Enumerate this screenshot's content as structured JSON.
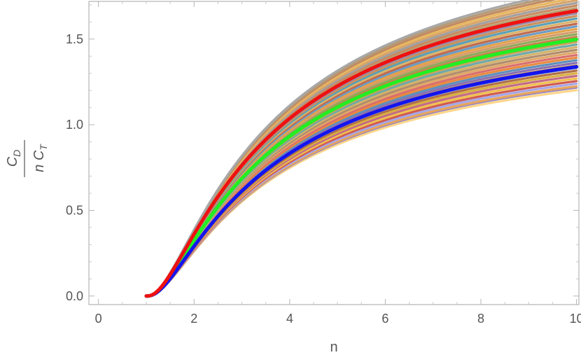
{
  "chart_data": {
    "type": "line",
    "title": "",
    "xlabel": "n",
    "ylabel": {
      "numerator": "C",
      "numerator_sub": "D",
      "denominator": "n C",
      "denominator_sub": "T"
    },
    "xlim": [
      -0.2,
      10.05
    ],
    "ylim": [
      -0.05,
      1.72
    ],
    "x_ticks": [
      0,
      2,
      4,
      6,
      8,
      10
    ],
    "y_ticks": [
      0.0,
      0.5,
      1.0,
      1.5
    ],
    "x_tick_labels": [
      "0",
      "2",
      "4",
      "6",
      "8",
      "10"
    ],
    "y_tick_labels": [
      "0.0",
      "0.5",
      "1.0",
      "1.5"
    ],
    "grid": false,
    "frame": true,
    "curve_form": "y = A * (1 - 1/n)^p",
    "x_range": [
      1,
      10
    ],
    "series": [
      {
        "A": 1.58,
        "p": 2.6,
        "color": "#fdd78a",
        "highlight": false
      },
      {
        "A": 1.6,
        "p": 2.6,
        "color": "#9b88c4",
        "highlight": false
      },
      {
        "A": 1.61,
        "p": 2.6,
        "color": "#e6a45a",
        "highlight": false
      },
      {
        "A": 1.63,
        "p": 2.6,
        "color": "#a6a6e6",
        "highlight": false
      },
      {
        "A": 1.65,
        "p": 2.6,
        "color": "#d05a4f",
        "highlight": false
      },
      {
        "A": 1.67,
        "p": 2.6,
        "color": "#f0c050",
        "highlight": false
      },
      {
        "A": 1.69,
        "p": 2.6,
        "color": "#c26a88",
        "highlight": false
      },
      {
        "A": 1.71,
        "p": 2.6,
        "color": "#d9b040",
        "highlight": false
      },
      {
        "A": 1.73,
        "p": 2.6,
        "color": "#b06e4a",
        "highlight": false
      },
      {
        "A": 1.75,
        "p": 2.6,
        "color": "#7f99c9",
        "highlight": false
      },
      {
        "A": 1.77,
        "p": 2.6,
        "color": "#c9964a",
        "highlight": false
      },
      {
        "A": 1.79,
        "p": 2.6,
        "color": "#8c6fb0",
        "highlight": false
      },
      {
        "A": 1.81,
        "p": 2.6,
        "color": "#5e8fbc",
        "highlight": false
      },
      {
        "A": 1.83,
        "p": 2.6,
        "color": "#e88a3e",
        "highlight": false
      },
      {
        "A": 1.85,
        "p": 2.6,
        "color": "#d96e6e",
        "highlight": false
      },
      {
        "A": 1.87,
        "p": 2.6,
        "color": "#e0a868",
        "highlight": false
      },
      {
        "A": 1.89,
        "p": 2.6,
        "color": "#b08c6c",
        "highlight": false
      },
      {
        "A": 1.91,
        "p": 2.6,
        "color": "#d4b26b",
        "highlight": false
      },
      {
        "A": 1.93,
        "p": 2.6,
        "color": "#6ea8a8",
        "highlight": false
      },
      {
        "A": 1.95,
        "p": 2.6,
        "color": "#c9a15a",
        "highlight": false
      },
      {
        "A": 1.97,
        "p": 2.6,
        "color": "#e8b14a",
        "highlight": false
      },
      {
        "A": 1.99,
        "p": 2.6,
        "color": "#c7804a",
        "highlight": false
      },
      {
        "A": 2.01,
        "p": 2.6,
        "color": "#8fa85a",
        "highlight": false
      },
      {
        "A": 2.03,
        "p": 2.6,
        "color": "#d49c6c",
        "highlight": false
      },
      {
        "A": 2.05,
        "p": 2.6,
        "color": "#e4a24a",
        "highlight": false
      },
      {
        "A": 2.07,
        "p": 2.6,
        "color": "#6d9cc4",
        "highlight": false
      },
      {
        "A": 2.09,
        "p": 2.6,
        "color": "#c06a4e",
        "highlight": false
      },
      {
        "A": 2.11,
        "p": 2.6,
        "color": "#ddb36a",
        "highlight": false
      },
      {
        "A": 2.13,
        "p": 2.6,
        "color": "#5aa0b8",
        "highlight": false
      },
      {
        "A": 2.15,
        "p": 2.6,
        "color": "#c9905a",
        "highlight": false
      },
      {
        "A": 2.17,
        "p": 2.6,
        "color": "#9a8aa8",
        "highlight": false
      },
      {
        "A": 2.19,
        "p": 2.6,
        "color": "#e0b060",
        "highlight": false
      },
      {
        "A": 2.21,
        "p": 2.6,
        "color": "#b8a070",
        "highlight": false
      },
      {
        "A": 2.23,
        "p": 2.6,
        "color": "#c88a60",
        "highlight": false
      },
      {
        "A": 2.25,
        "p": 2.6,
        "color": "#a0a0a0",
        "highlight": false
      },
      {
        "A": 2.27,
        "p": 2.6,
        "color": "#d8a46a",
        "highlight": false
      },
      {
        "A": 2.29,
        "p": 2.6,
        "color": "#e8b860",
        "highlight": false
      },
      {
        "A": 2.31,
        "p": 2.6,
        "color": "#c28a62",
        "highlight": false
      },
      {
        "A": 2.33,
        "p": 2.6,
        "color": "#b49a78",
        "highlight": false
      },
      {
        "A": 2.35,
        "p": 2.6,
        "color": "#a8a8a8",
        "highlight": false
      },
      {
        "A": 1.97,
        "p": 2.6,
        "color": "#22ee22",
        "highlight": "green"
      },
      {
        "A": 1.76,
        "p": 2.6,
        "color": "#1414ee",
        "highlight": "blue"
      },
      {
        "A": 2.19,
        "p": 2.6,
        "color": "#ee1111",
        "highlight": "red"
      }
    ]
  }
}
